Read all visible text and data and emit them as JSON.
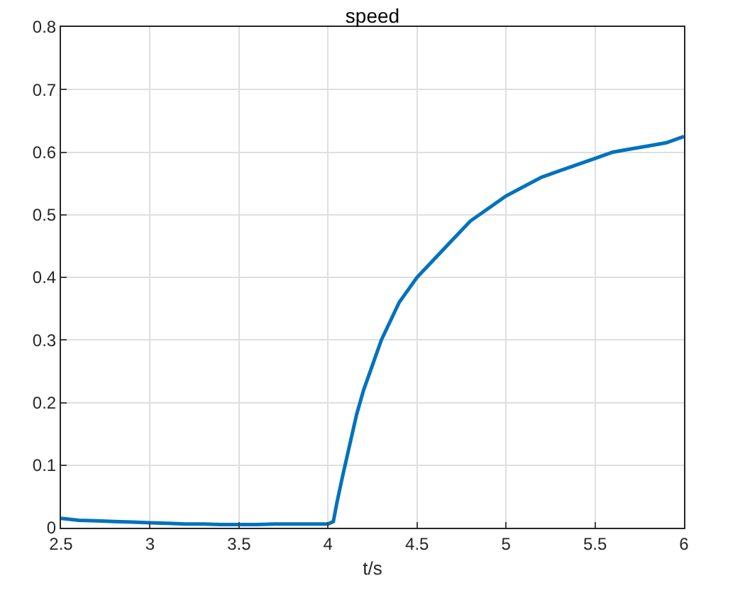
{
  "chart_data": {
    "type": "line",
    "title": "speed",
    "xlabel": "t/s",
    "x": [
      2.5,
      2.6,
      2.7,
      2.8,
      2.9,
      3.0,
      3.1,
      3.2,
      3.3,
      3.4,
      3.5,
      3.6,
      3.7,
      3.8,
      3.9,
      4.0,
      4.03,
      4.05,
      4.08,
      4.12,
      4.16,
      4.2,
      4.25,
      4.3,
      4.35,
      4.4,
      4.45,
      4.5,
      4.6,
      4.7,
      4.8,
      4.9,
      5.0,
      5.1,
      5.2,
      5.3,
      5.4,
      5.5,
      5.6,
      5.7,
      5.8,
      5.9,
      6.0
    ],
    "series": [
      {
        "color": "#0072bd",
        "values": [
          0.015,
          0.012,
          0.011,
          0.01,
          0.009,
          0.008,
          0.007,
          0.006,
          0.006,
          0.005,
          0.005,
          0.005,
          0.006,
          0.006,
          0.006,
          0.006,
          0.01,
          0.04,
          0.08,
          0.13,
          0.18,
          0.22,
          0.26,
          0.3,
          0.33,
          0.36,
          0.38,
          0.4,
          0.43,
          0.46,
          0.49,
          0.51,
          0.53,
          0.545,
          0.56,
          0.57,
          0.58,
          0.59,
          0.6,
          0.605,
          0.61,
          0.615,
          0.625
        ]
      }
    ],
    "xlim": [
      2.5,
      6
    ],
    "xticks": [
      2.5,
      3,
      3.5,
      4,
      4.5,
      5,
      5.5,
      6
    ],
    "ylim": [
      0,
      0.8
    ],
    "yticks": [
      0,
      0.1,
      0.2,
      0.3,
      0.4,
      0.5,
      0.6,
      0.7,
      0.8
    ],
    "grid": true,
    "line_style": "solid"
  }
}
